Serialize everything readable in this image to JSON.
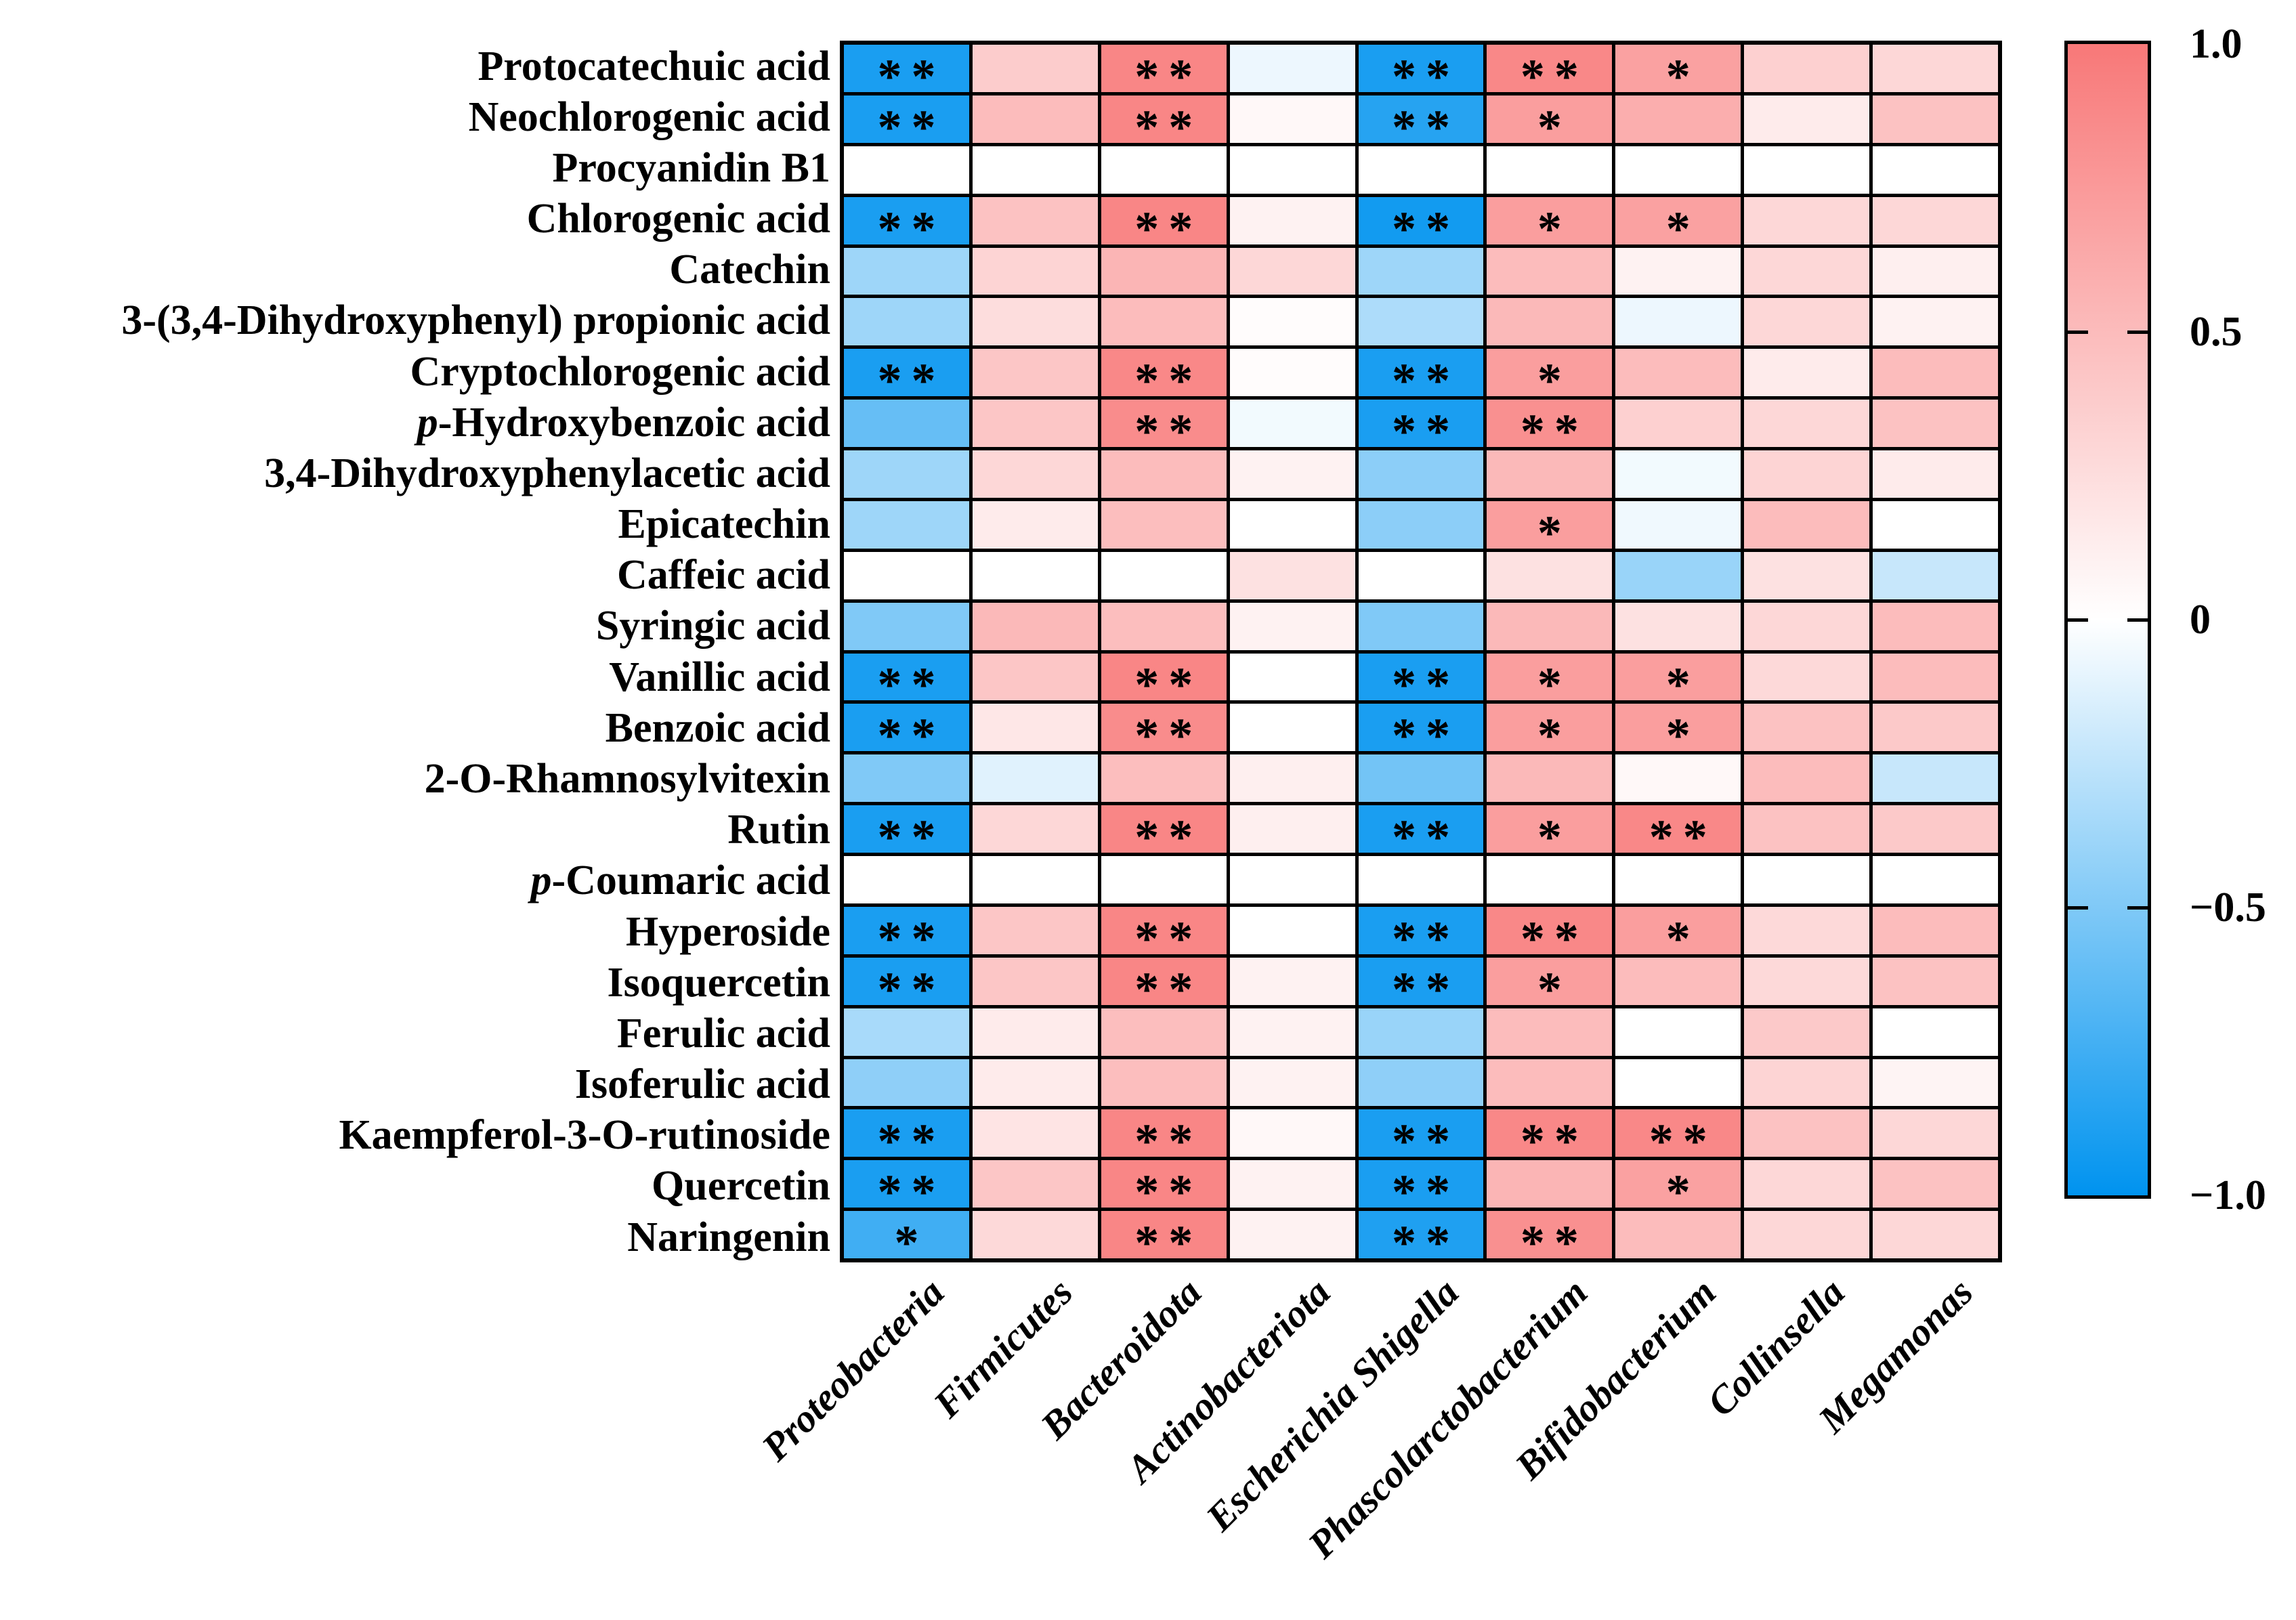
{
  "figure": {
    "background": "#ffffff",
    "grid_line_color": "#000000",
    "text_color": "#000000"
  },
  "chart_data": {
    "type": "heatmap",
    "title": "",
    "xlabel": "",
    "ylabel": "",
    "value_range": [
      -1.0,
      1.0
    ],
    "legend_position": "right",
    "grid": true,
    "rows": [
      "Protocatechuic acid",
      "Neochlorogenic acid",
      "Procyanidin B1",
      "Chlorogenic acid",
      "Catechin",
      "3-(3,4-Dihydroxyphenyl) propionic acid",
      "Cryptochlorogenic acid",
      "p-Hydroxybenzoic acid",
      "3,4-Dihydroxyphenylacetic acid",
      "Epicatechin",
      "Caffeic acid",
      "Syringic acid",
      "Vanillic acid",
      "Benzoic acid",
      "2-O-Rhamnosylvitexin",
      "Rutin",
      "p-Coumaric acid",
      "Hyperoside",
      "Isoquercetin",
      "Ferulic acid",
      "Isoferulic acid",
      "Kaempferol-3-O-rutinoside",
      "Quercetin",
      "Naringenin"
    ],
    "columns": [
      "Proteobacteria",
      "Firmicutes",
      "Bacteroidota",
      "Actinobacteriota",
      "Escherichia Shigella",
      "Phascolarctobacterium",
      "Bifidobacterium",
      "Collinsella",
      "Megamonas"
    ],
    "matrix": [
      [
        -0.9,
        0.38,
        0.9,
        -0.07,
        -0.9,
        0.88,
        0.7,
        0.35,
        0.3
      ],
      [
        -0.9,
        0.5,
        0.9,
        0.05,
        -0.85,
        0.72,
        0.6,
        0.15,
        0.45
      ],
      [
        0.0,
        0.0,
        0.0,
        0.0,
        0.0,
        0.0,
        0.0,
        0.0,
        0.0
      ],
      [
        -0.9,
        0.45,
        0.9,
        0.1,
        -0.93,
        0.72,
        0.7,
        0.3,
        0.3
      ],
      [
        -0.38,
        0.32,
        0.55,
        0.3,
        -0.38,
        0.5,
        0.1,
        0.3,
        0.12
      ],
      [
        -0.38,
        0.25,
        0.5,
        0.02,
        -0.32,
        0.52,
        -0.07,
        0.3,
        0.1
      ],
      [
        -0.9,
        0.42,
        0.88,
        0.02,
        -0.9,
        0.72,
        0.5,
        0.15,
        0.5
      ],
      [
        -0.6,
        0.42,
        0.85,
        -0.05,
        -0.9,
        0.82,
        0.35,
        0.3,
        0.45
      ],
      [
        -0.38,
        0.3,
        0.5,
        0.1,
        -0.45,
        0.52,
        -0.05,
        0.32,
        0.15
      ],
      [
        -0.38,
        0.15,
        0.48,
        0.0,
        -0.45,
        0.72,
        -0.06,
        0.5,
        0.0
      ],
      [
        0.0,
        0.0,
        0.0,
        0.22,
        0.0,
        0.22,
        -0.4,
        0.22,
        -0.22
      ],
      [
        -0.5,
        0.52,
        0.48,
        0.1,
        -0.5,
        0.52,
        0.22,
        0.3,
        0.5
      ],
      [
        -0.9,
        0.42,
        0.9,
        0.0,
        -0.9,
        0.72,
        0.72,
        0.28,
        0.5
      ],
      [
        -0.9,
        0.18,
        0.85,
        0.0,
        -0.9,
        0.72,
        0.72,
        0.45,
        0.4
      ],
      [
        -0.5,
        -0.12,
        0.48,
        0.12,
        -0.55,
        0.52,
        0.05,
        0.5,
        -0.22
      ],
      [
        -0.9,
        0.3,
        0.9,
        0.12,
        -0.9,
        0.72,
        0.88,
        0.45,
        0.4
      ],
      [
        0.0,
        0.0,
        0.0,
        0.0,
        0.0,
        0.0,
        0.0,
        0.0,
        0.0
      ],
      [
        -0.9,
        0.42,
        0.9,
        0.0,
        -0.9,
        0.88,
        0.72,
        0.28,
        0.5
      ],
      [
        -0.9,
        0.42,
        0.9,
        0.1,
        -0.9,
        0.72,
        0.5,
        0.28,
        0.45
      ],
      [
        -0.34,
        0.15,
        0.48,
        0.1,
        -0.4,
        0.5,
        0.0,
        0.4,
        0.0
      ],
      [
        -0.44,
        0.15,
        0.48,
        0.1,
        -0.44,
        0.5,
        0.0,
        0.32,
        0.08
      ],
      [
        -0.9,
        0.2,
        0.9,
        0.05,
        -0.9,
        0.88,
        0.88,
        0.45,
        0.3
      ],
      [
        -0.9,
        0.42,
        0.9,
        0.1,
        -0.9,
        0.55,
        0.7,
        0.3,
        0.45
      ],
      [
        -0.75,
        0.28,
        0.9,
        0.1,
        -0.88,
        0.82,
        0.5,
        0.3,
        0.3
      ]
    ],
    "significance": [
      [
        "**",
        "",
        "**",
        "",
        "**",
        "**",
        "*",
        "",
        ""
      ],
      [
        "**",
        "",
        "**",
        "",
        "**",
        "*",
        "",
        "",
        ""
      ],
      [
        "",
        "",
        "",
        "",
        "",
        "",
        "",
        "",
        ""
      ],
      [
        "**",
        "",
        "**",
        "",
        "**",
        "*",
        "*",
        "",
        ""
      ],
      [
        "",
        "",
        "",
        "",
        "",
        "",
        "",
        "",
        ""
      ],
      [
        "",
        "",
        "",
        "",
        "",
        "",
        "",
        "",
        ""
      ],
      [
        "**",
        "",
        "**",
        "",
        "**",
        "*",
        "",
        "",
        ""
      ],
      [
        "",
        "",
        "**",
        "",
        "**",
        "**",
        "",
        "",
        ""
      ],
      [
        "",
        "",
        "",
        "",
        "",
        "",
        "",
        "",
        ""
      ],
      [
        "",
        "",
        "",
        "",
        "",
        "*",
        "",
        "",
        ""
      ],
      [
        "",
        "",
        "",
        "",
        "",
        "",
        "",
        "",
        ""
      ],
      [
        "",
        "",
        "",
        "",
        "",
        "",
        "",
        "",
        ""
      ],
      [
        "**",
        "",
        "**",
        "",
        "**",
        "*",
        "*",
        "",
        ""
      ],
      [
        "**",
        "",
        "**",
        "",
        "**",
        "*",
        "*",
        "",
        ""
      ],
      [
        "",
        "",
        "",
        "",
        "",
        "",
        "",
        "",
        ""
      ],
      [
        "**",
        "",
        "**",
        "",
        "**",
        "*",
        "**",
        "",
        ""
      ],
      [
        "",
        "",
        "",
        "",
        "",
        "",
        "",
        "",
        ""
      ],
      [
        "**",
        "",
        "**",
        "",
        "**",
        "**",
        "*",
        "",
        ""
      ],
      [
        "**",
        "",
        "**",
        "",
        "**",
        "*",
        "",
        "",
        ""
      ],
      [
        "",
        "",
        "",
        "",
        "",
        "",
        "",
        "",
        ""
      ],
      [
        "",
        "",
        "",
        "",
        "",
        "",
        "",
        "",
        ""
      ],
      [
        "**",
        "",
        "**",
        "",
        "**",
        "**",
        "**",
        "",
        ""
      ],
      [
        "**",
        "",
        "**",
        "",
        "**",
        "",
        "*",
        "",
        ""
      ],
      [
        "*",
        "",
        "**",
        "",
        "**",
        "**",
        "",
        "",
        ""
      ]
    ],
    "colormap": {
      "positive_end": "#F87878",
      "zero": "#FFFFFF",
      "negative_end": "#0093EF"
    },
    "colorbar_ticks": [
      {
        "label": "1.0",
        "value": 1.0
      },
      {
        "label": "0.5",
        "value": 0.5
      },
      {
        "label": "0",
        "value": 0.0
      },
      {
        "label": "−0.5",
        "value": -0.5
      },
      {
        "label": "−1.0",
        "value": -1.0
      }
    ]
  }
}
